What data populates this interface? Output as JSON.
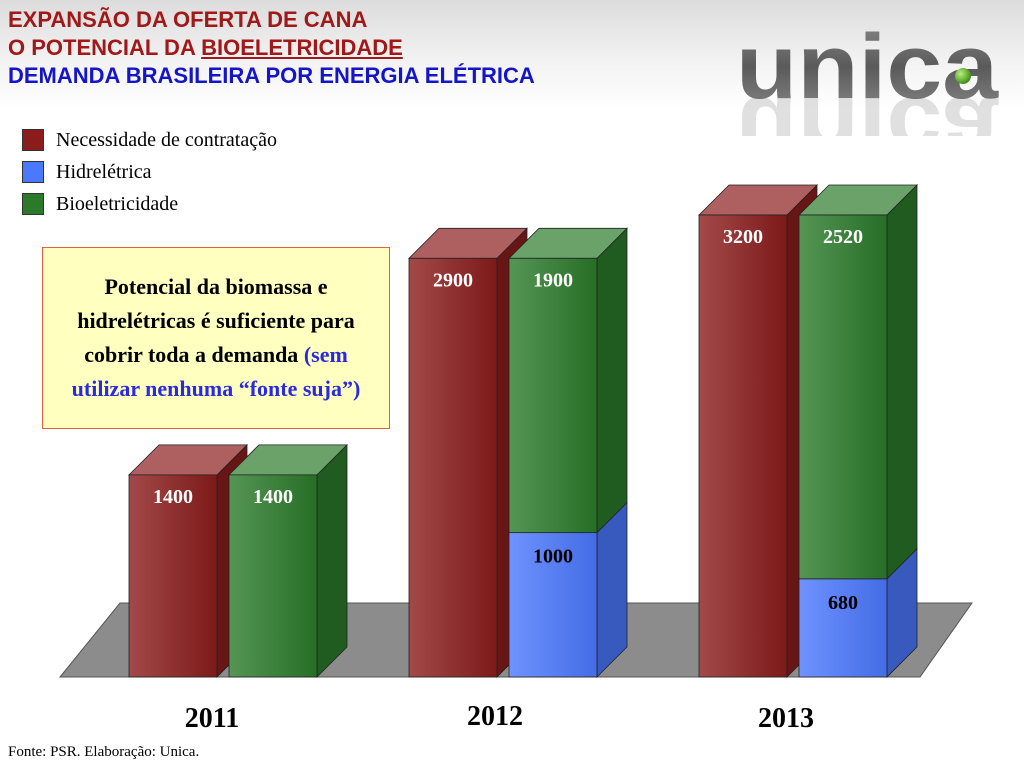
{
  "header": {
    "line1": "EXPANSÃO DA OFERTA DE CANA",
    "line2_prefix": "O POTENCIAL DA ",
    "line2_highlight": "BIOELETRICIDADE",
    "line3": "DEMANDA BRASILEIRA POR ENERGIA ELÉTRICA"
  },
  "logo": {
    "text": "unica"
  },
  "note": {
    "text_main": "Potencial da biomassa e hidrelétricas é suficiente para cobrir toda a demanda ",
    "text_highlight": "(sem utilizar nenhuma “fonte suja”)"
  },
  "footer": {
    "source": "Fonte: PSR. Elaboração: Unica."
  },
  "colors": {
    "necessidade": "#8b1c1c",
    "hidreletrica": "#4a78ff",
    "bioeletricidade": "#2a7a2a",
    "title_red": "#a01818",
    "title_blue": "#1414c8"
  },
  "chart_data": {
    "type": "bar",
    "stacked_series": [
      "Hidrelétrica",
      "Bioeletricidade"
    ],
    "categories": [
      "2011",
      "2012",
      "2013"
    ],
    "series": [
      {
        "name": "Necessidade de contratação",
        "values": [
          1400,
          2900,
          3200
        ]
      },
      {
        "name": "Hidrelétrica",
        "values": [
          0,
          1000,
          680
        ]
      },
      {
        "name": "Bioeletricidade",
        "values": [
          1400,
          1900,
          2520
        ]
      }
    ],
    "legend": [
      "Necessidade de contratação",
      "Hidrelétrica",
      "Bioeletricidade"
    ],
    "legend_position": "top-left",
    "ylim": [
      0,
      3200
    ],
    "grid": false,
    "title": "",
    "xlabel": "",
    "ylabel": ""
  }
}
